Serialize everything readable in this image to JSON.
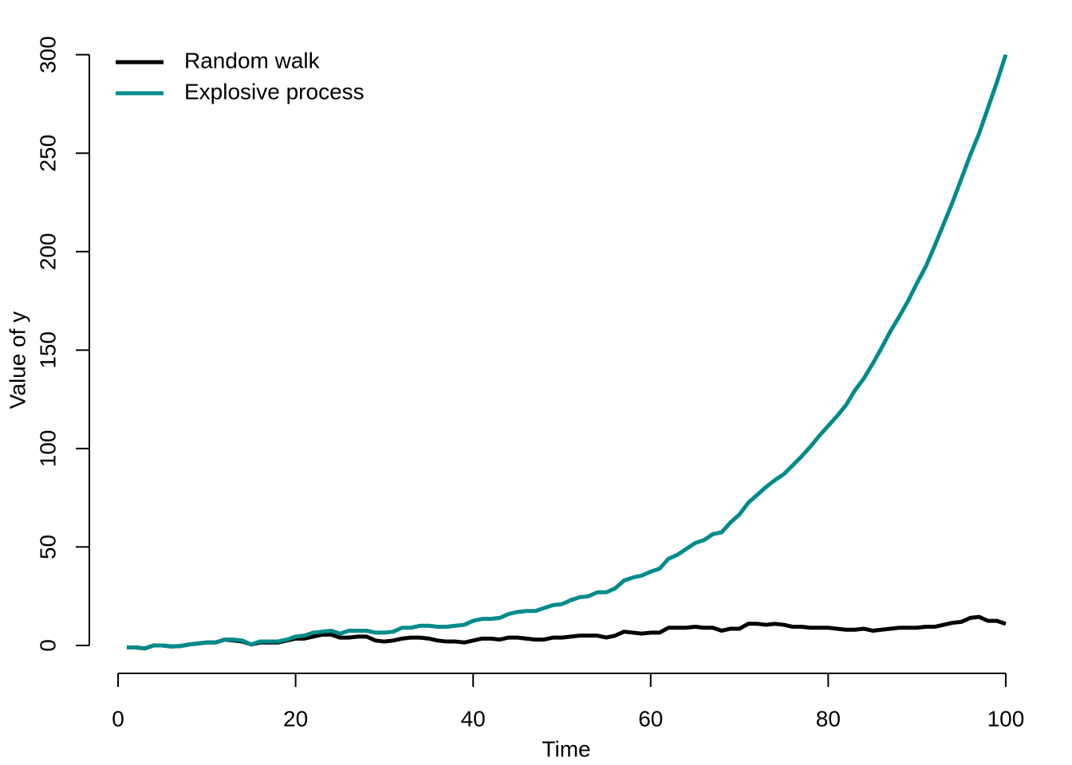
{
  "chart_data": {
    "type": "line",
    "x_label": "Time",
    "y_label": "Value of y",
    "x": [
      1,
      2,
      3,
      4,
      5,
      6,
      7,
      8,
      9,
      10,
      11,
      12,
      13,
      14,
      15,
      16,
      17,
      18,
      19,
      20,
      21,
      22,
      23,
      24,
      25,
      26,
      27,
      28,
      29,
      30,
      31,
      32,
      33,
      34,
      35,
      36,
      37,
      38,
      39,
      40,
      41,
      42,
      43,
      44,
      45,
      46,
      47,
      48,
      49,
      50,
      51,
      52,
      53,
      54,
      55,
      56,
      57,
      58,
      59,
      60,
      61,
      62,
      63,
      64,
      65,
      66,
      67,
      68,
      69,
      70,
      71,
      72,
      73,
      74,
      75,
      76,
      77,
      78,
      79,
      80,
      81,
      82,
      83,
      84,
      85,
      86,
      87,
      88,
      89,
      90,
      91,
      92,
      93,
      94,
      95,
      96,
      97,
      98,
      99,
      100
    ],
    "series": [
      {
        "name": "Random walk",
        "color": "#000000",
        "values": [
          -1,
          -1,
          -1.5,
          0,
          0,
          -0.5,
          -0.3,
          0.5,
          1,
          1.5,
          1.5,
          3,
          2.5,
          2,
          0.5,
          1.5,
          1.5,
          1.5,
          2.5,
          3.5,
          3.5,
          4.5,
          5.5,
          5.5,
          4,
          4,
          4.5,
          4.5,
          2.5,
          2,
          2.5,
          3.5,
          4,
          4,
          3.5,
          2.5,
          2,
          2,
          1.5,
          2.5,
          3.5,
          3.5,
          3,
          4,
          4,
          3.5,
          3,
          3,
          4,
          4,
          4.5,
          5,
          5,
          5,
          4,
          5,
          7,
          6.5,
          6,
          6.5,
          6.5,
          9,
          9,
          9,
          9.5,
          9,
          9,
          7.5,
          8.5,
          8.5,
          11,
          11,
          10.5,
          11,
          10.5,
          9.5,
          9.5,
          9,
          9,
          9,
          8.5,
          8,
          8,
          8.5,
          7.5,
          8,
          8.5,
          9,
          9,
          9,
          9.5,
          9.5,
          10.5,
          11.5,
          12,
          14,
          14.5,
          12.5,
          12.5,
          11
        ]
      },
      {
        "name": "Explosive process",
        "color": "#008b8b",
        "values": [
          -1,
          -1,
          -1.5,
          0,
          0,
          -0.5,
          -0.3,
          0.5,
          1,
          1.5,
          1.5,
          3,
          3,
          2.5,
          0.5,
          2,
          2,
          2,
          3,
          4.5,
          5,
          6.5,
          7,
          7.5,
          6,
          7.5,
          7.5,
          7.5,
          6.5,
          6.5,
          7,
          9,
          9,
          10,
          10,
          9.5,
          9.5,
          10,
          10.5,
          12.5,
          13.5,
          13.5,
          14,
          16,
          17,
          17.5,
          17.5,
          19,
          20.5,
          21,
          23,
          24.5,
          25,
          27,
          27,
          29,
          33,
          34.5,
          35.5,
          37.5,
          39,
          44,
          46,
          49,
          52,
          53.5,
          56.5,
          57.5,
          62.5,
          66.5,
          72.5,
          76.5,
          80.5,
          84,
          87,
          91.5,
          96,
          101,
          106.5,
          111.5,
          116.5,
          122,
          129.5,
          135.5,
          143,
          151,
          159.5,
          167,
          175,
          184,
          192.5,
          203,
          214,
          225,
          237,
          249,
          260,
          273,
          286,
          300
        ]
      }
    ],
    "xlim": [
      -2.96,
      103.96
    ],
    "ylim": [
      -13.6,
      312
    ],
    "xticks": [
      0,
      20,
      40,
      60,
      80,
      100
    ],
    "yticks": [
      0,
      50,
      100,
      150,
      200,
      250,
      300
    ],
    "legend": "top-left"
  }
}
